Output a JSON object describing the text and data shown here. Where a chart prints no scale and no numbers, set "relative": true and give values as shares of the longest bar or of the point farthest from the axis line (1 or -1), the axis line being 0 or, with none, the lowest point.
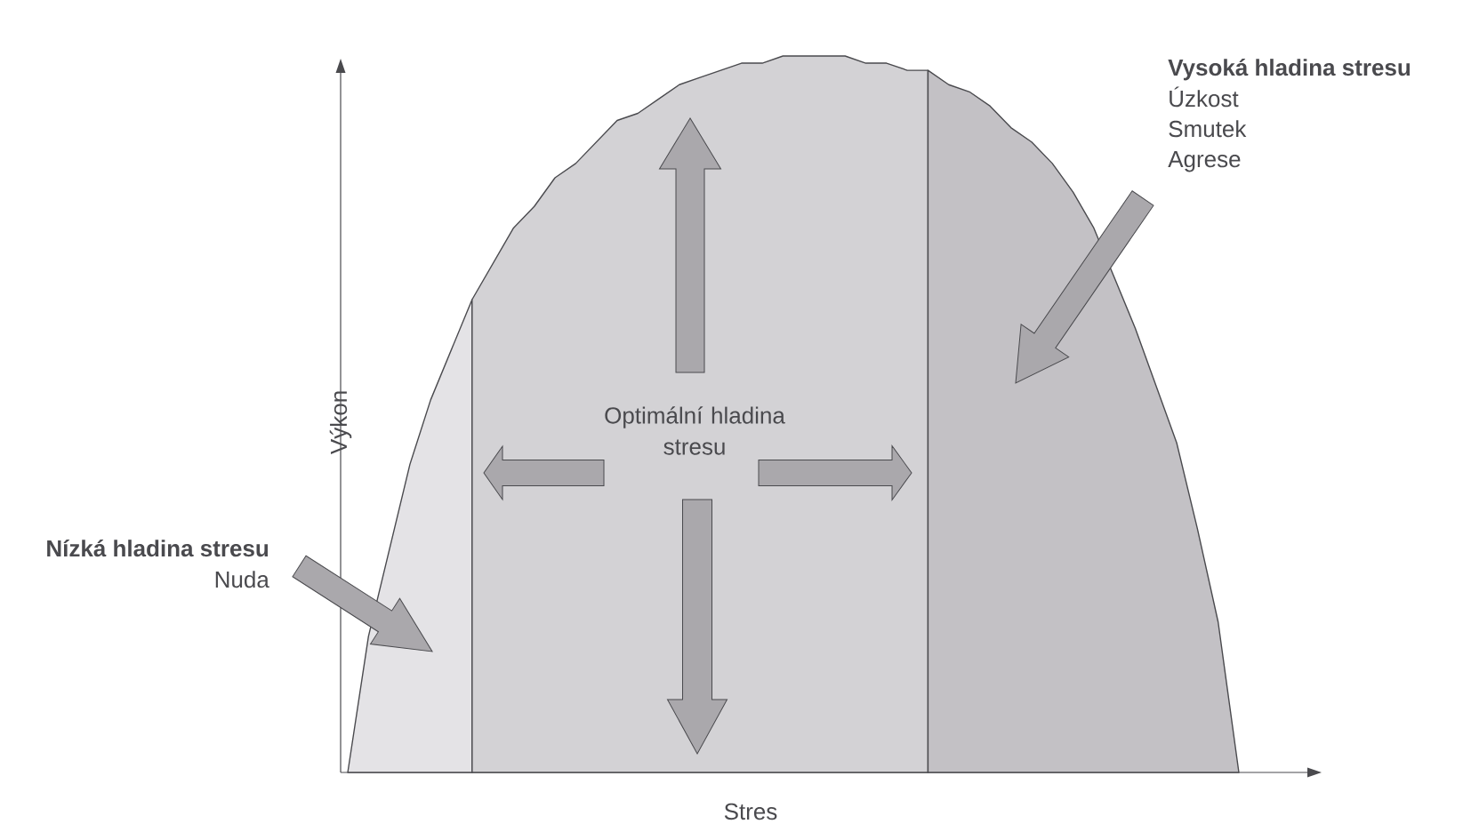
{
  "chart_data": {
    "type": "area",
    "relative": true,
    "xlabel": "Stres",
    "ylabel": "Výkon",
    "categories": [
      null,
      null,
      null,
      null,
      null,
      null,
      null,
      null,
      null,
      null,
      null,
      null,
      null,
      null,
      null,
      null,
      null,
      null,
      null,
      null,
      null,
      null,
      null,
      null,
      null,
      null,
      null,
      null,
      null,
      null,
      null,
      null,
      null,
      null,
      null,
      null,
      null,
      null,
      null,
      null,
      null,
      null,
      null,
      null
    ],
    "series": [
      {
        "color": "#e4e3e6",
        "values": [
          0,
          0.19,
          0.31,
          0.43,
          0.52,
          0.59,
          0.66,
          null,
          null,
          null,
          null,
          null,
          null,
          null,
          null,
          null,
          null,
          null,
          null,
          null,
          null,
          null,
          null,
          null,
          null,
          null,
          null,
          null,
          null,
          null,
          null,
          null,
          null,
          null,
          null,
          null,
          null,
          null,
          null,
          null,
          null,
          null,
          null,
          null
        ]
      },
      {
        "color": "#d3d2d5",
        "values": [
          null,
          null,
          null,
          null,
          null,
          null,
          0.66,
          0.71,
          0.76,
          0.79,
          0.83,
          0.85,
          0.88,
          0.91,
          0.92,
          0.94,
          0.96,
          0.97,
          0.98,
          0.99,
          0.99,
          1.0,
          1.0,
          1.0,
          1.0,
          0.99,
          0.99,
          0.98,
          0.98,
          null,
          null,
          null,
          null,
          null,
          null,
          null,
          null,
          null,
          null,
          null,
          null,
          null,
          null,
          null
        ]
      },
      {
        "color": "#c3c1c5",
        "values": [
          null,
          null,
          null,
          null,
          null,
          null,
          null,
          null,
          null,
          null,
          null,
          null,
          null,
          null,
          null,
          null,
          null,
          null,
          null,
          null,
          null,
          null,
          null,
          null,
          null,
          null,
          null,
          null,
          0.98,
          0.96,
          0.95,
          0.93,
          0.9,
          0.88,
          0.85,
          0.81,
          0.76,
          0.69,
          0.62,
          0.54,
          0.46,
          0.34,
          0.21,
          0
        ]
      }
    ],
    "annotations": [
      "Nízká hladina stresu",
      "Nuda",
      "Optimální hladina stresu",
      "Vysoká hladina stresu",
      "Úzkost",
      "Smutek",
      "Agrese"
    ]
  }
}
